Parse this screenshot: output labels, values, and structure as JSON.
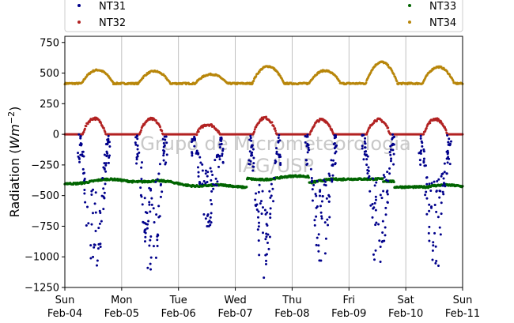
{
  "chart_data": {
    "type": "scatter",
    "ylabel": "Radiation (Wm⁻²)",
    "ylim": [
      -1250,
      800
    ],
    "yticks": [
      750,
      500,
      250,
      0,
      -250,
      -500,
      -750,
      -1000,
      -1250
    ],
    "ytick_labels": [
      "750",
      "500",
      "250",
      "0",
      "−250",
      "−500",
      "−750",
      "−1000",
      "−1250"
    ],
    "xlim": [
      "2018-02-04 00:00",
      "2018-02-11 00:00"
    ],
    "xticks": [
      "Sun\nFeb-04",
      "Mon\nFeb-05",
      "Tue\nFeb-06",
      "Wed\nFeb-07",
      "Thu\nFeb-08",
      "Fri\nFeb-09",
      "Sat\nFeb-10",
      "Sun\nFeb-11"
    ],
    "grid": "vertical",
    "legend": "top",
    "watermark": [
      "Grupo de Micrometeorologia",
      "IAG/USP"
    ],
    "series": [
      {
        "name": "NT31",
        "color": "#00008b",
        "description_of_pattern": "daytime strongly negative scattered values each day",
        "daily_min": [
          -1140,
          -1190,
          -750,
          -1170,
          -1040,
          -1130,
          -1100
        ],
        "x": [
          "02-04 09:00",
          "02-04 10:00",
          "02-04 11:00",
          "02-04 12:00",
          "02-04 13:00",
          "02-04 14:00",
          "02-04 15:00",
          "02-05 09:00",
          "02-05 10:00",
          "02-05 11:00",
          "02-05 12:00",
          "02-05 13:00",
          "02-05 14:00",
          "02-05 15:00",
          "02-06 09:00",
          "02-06 10:00",
          "02-06 11:00",
          "02-06 12:00",
          "02-06 13:00",
          "02-06 14:00",
          "02-06 15:00",
          "02-07 09:00",
          "02-07 10:00",
          "02-07 11:00",
          "02-07 12:00",
          "02-07 13:00",
          "02-07 14:00",
          "02-07 15:00",
          "02-08 09:00",
          "02-08 10:00",
          "02-08 11:00",
          "02-08 12:00",
          "02-08 13:00",
          "02-08 14:00",
          "02-08 15:00",
          "02-09 09:00",
          "02-09 10:00",
          "02-09 11:00",
          "02-09 12:00",
          "02-09 13:00",
          "02-09 14:00",
          "02-09 15:00",
          "02-10 09:00",
          "02-10 10:00",
          "02-10 11:00",
          "02-10 12:00",
          "02-10 13:00",
          "02-10 14:00",
          "02-10 15:00"
        ],
        "y": [
          -200,
          -650,
          -950,
          -1140,
          -900,
          -550,
          -200,
          -250,
          -700,
          -1000,
          -1190,
          -850,
          -500,
          -150,
          -150,
          -450,
          -600,
          -750,
          -550,
          -350,
          -150,
          -300,
          -800,
          -1050,
          -1170,
          -900,
          -600,
          -200,
          -400,
          -800,
          -1000,
          -1040,
          -700,
          -300,
          -100,
          -350,
          -800,
          -1050,
          -1130,
          -800,
          -400,
          -100,
          -300,
          -700,
          -950,
          -1100,
          -700,
          -400,
          -150
        ]
      },
      {
        "name": "NT32",
        "color": "#b22222",
        "description_of_pattern": "zero at night, positive hump during day",
        "daily_max": [
          130,
          125,
          80,
          135,
          120,
          120,
          125
        ]
      },
      {
        "name": "NT33",
        "color": "#006400",
        "description_of_pattern": "near-constant negative longwave, about -350 to -450"
      },
      {
        "name": "NT34",
        "color": "#b8860b",
        "description_of_pattern": "baseline ~410 with daily humps",
        "daily_max": [
          525,
          515,
          490,
          555,
          520,
          590,
          550
        ]
      }
    ]
  }
}
